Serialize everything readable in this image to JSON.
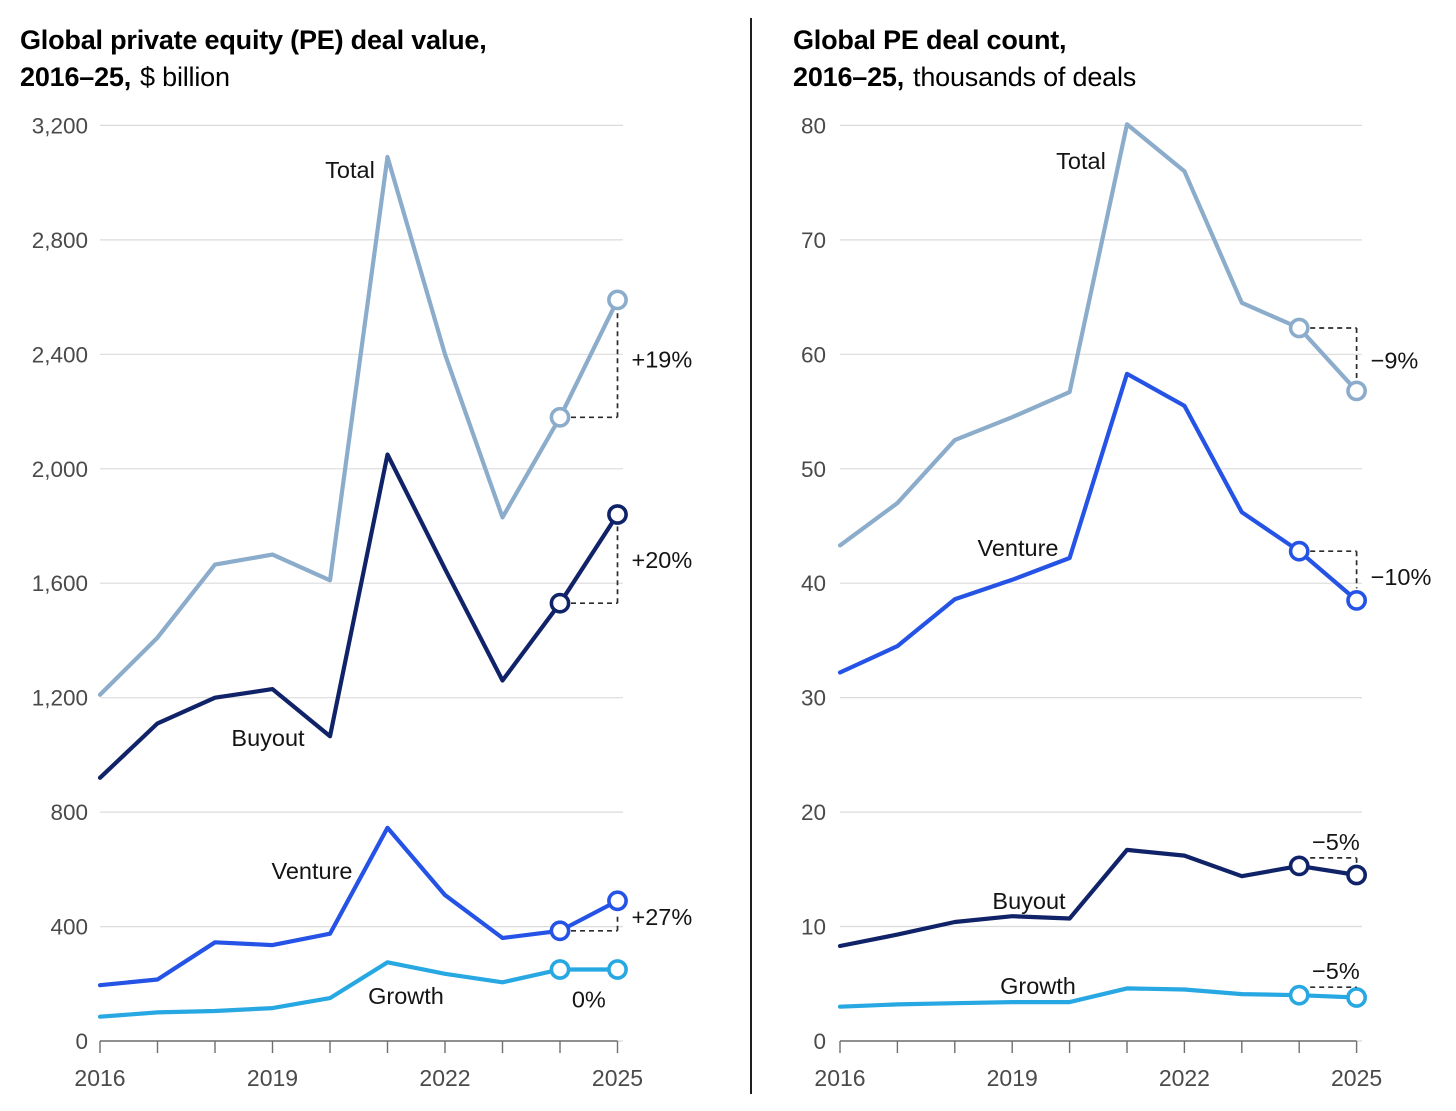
{
  "page_title": "Global PE deal value and deal count, 2016-25",
  "divider_color": "#1f1f1f",
  "colors": {
    "total": "#8CACCB",
    "buyout": "#112368",
    "venture": "#2453E6",
    "growth": "#28A8E2",
    "grid": "#DBDBDB",
    "axis": "#6F6F6F",
    "tick_text": "#4A4A4A",
    "annotation": "#141414",
    "dash": "#2B2B2B"
  },
  "chart_data": [
    {
      "type": "line",
      "title": "Global private equity (PE) deal value, 2016–25, $ billion",
      "title_parts": {
        "bold1": "Global private equity (PE) deal value,",
        "bold2": "2016–25,",
        "normal": "$ billion"
      },
      "x": [
        2016,
        2017,
        2018,
        2019,
        2020,
        2021,
        2022,
        2023,
        2024,
        2025
      ],
      "x_shown": [
        2016,
        2019,
        2022,
        2025
      ],
      "ylabel": "$ billion",
      "ylim": [
        0,
        3200
      ],
      "ytick_step": 400,
      "ytick_labels": [
        "0",
        "400",
        "800",
        "1,200",
        "1,600",
        "2,000",
        "2,400",
        "2,800",
        "3,200"
      ],
      "grid": true,
      "legend": "inline-series-labels",
      "series": [
        {
          "name": "Total",
          "color": "#8CACCB",
          "values": [
            1210,
            1410,
            1665,
            1700,
            1610,
            3090,
            2400,
            1830,
            2180,
            2590
          ],
          "markers": [
            8,
            9
          ],
          "label": {
            "x": 350,
            "y": 178
          },
          "annotation": {
            "text": "+19%",
            "style": "rise"
          }
        },
        {
          "name": "Buyout",
          "color": "#112368",
          "values": [
            920,
            1110,
            1200,
            1230,
            1065,
            2050,
            1650,
            1260,
            1530,
            1840
          ],
          "markers": [
            8,
            9
          ],
          "label": {
            "x": 268,
            "y": 746
          },
          "annotation": {
            "text": "+20%",
            "style": "rise"
          }
        },
        {
          "name": "Venture",
          "color": "#2453E6",
          "values": [
            195,
            215,
            345,
            335,
            375,
            745,
            510,
            360,
            385,
            490
          ],
          "markers": [
            8,
            9
          ],
          "label": {
            "x": 312,
            "y": 879
          },
          "annotation": {
            "text": "+27%",
            "style": "rise"
          }
        },
        {
          "name": "Growth",
          "color": "#28A8E2",
          "values": [
            85,
            100,
            105,
            115,
            150,
            275,
            235,
            205,
            250,
            250
          ],
          "markers": [
            8,
            9
          ],
          "label": {
            "x": 406,
            "y": 1004
          },
          "annotation": {
            "text": "0%",
            "style": "below"
          }
        }
      ]
    },
    {
      "type": "line",
      "title": "Global PE deal count, 2016–25, thousands of deals",
      "title_parts": {
        "bold1": "Global PE deal count,",
        "bold2": "2016–25,",
        "normal": "thousands of deals"
      },
      "x": [
        2016,
        2017,
        2018,
        2019,
        2020,
        2021,
        2022,
        2023,
        2024,
        2025
      ],
      "x_shown": [
        2016,
        2019,
        2022,
        2025
      ],
      "ylabel": "thousands of deals",
      "ylim": [
        0,
        80
      ],
      "ytick_step": 10,
      "ytick_labels": [
        "0",
        "10",
        "20",
        "30",
        "40",
        "50",
        "60",
        "70",
        "80"
      ],
      "grid": true,
      "legend": "inline-series-labels",
      "series": [
        {
          "name": "Total",
          "color": "#8CACCB",
          "values": [
            43.3,
            47,
            52.5,
            54.5,
            56.7,
            80.1,
            76,
            64.5,
            62.3,
            56.8
          ],
          "markers": [
            8,
            9
          ],
          "label": {
            "x": 1081,
            "y": 169
          },
          "annotation": {
            "text": "−9%",
            "style": "fall"
          }
        },
        {
          "name": "Venture",
          "color": "#2453E6",
          "values": [
            32.2,
            34.5,
            38.6,
            40.3,
            42.2,
            58.3,
            55.5,
            46.2,
            42.8,
            38.5
          ],
          "markers": [
            8,
            9
          ],
          "label": {
            "x": 1018,
            "y": 556
          },
          "annotation": {
            "text": "−10%",
            "style": "fall"
          }
        },
        {
          "name": "Buyout",
          "color": "#112368",
          "values": [
            8.3,
            9.3,
            10.4,
            10.9,
            10.7,
            16.7,
            16.2,
            14.4,
            15.3,
            14.5
          ],
          "markers": [
            8,
            9
          ],
          "label": {
            "x": 1029,
            "y": 909
          },
          "annotation": {
            "text": "−5%",
            "style": "above"
          }
        },
        {
          "name": "Growth",
          "color": "#28A8E2",
          "values": [
            3.0,
            3.2,
            3.3,
            3.4,
            3.4,
            4.6,
            4.5,
            4.1,
            4.0,
            3.8
          ],
          "markers": [
            8,
            9
          ],
          "label": {
            "x": 1038,
            "y": 994
          },
          "annotation": {
            "text": "−5%",
            "style": "above"
          }
        }
      ]
    }
  ]
}
